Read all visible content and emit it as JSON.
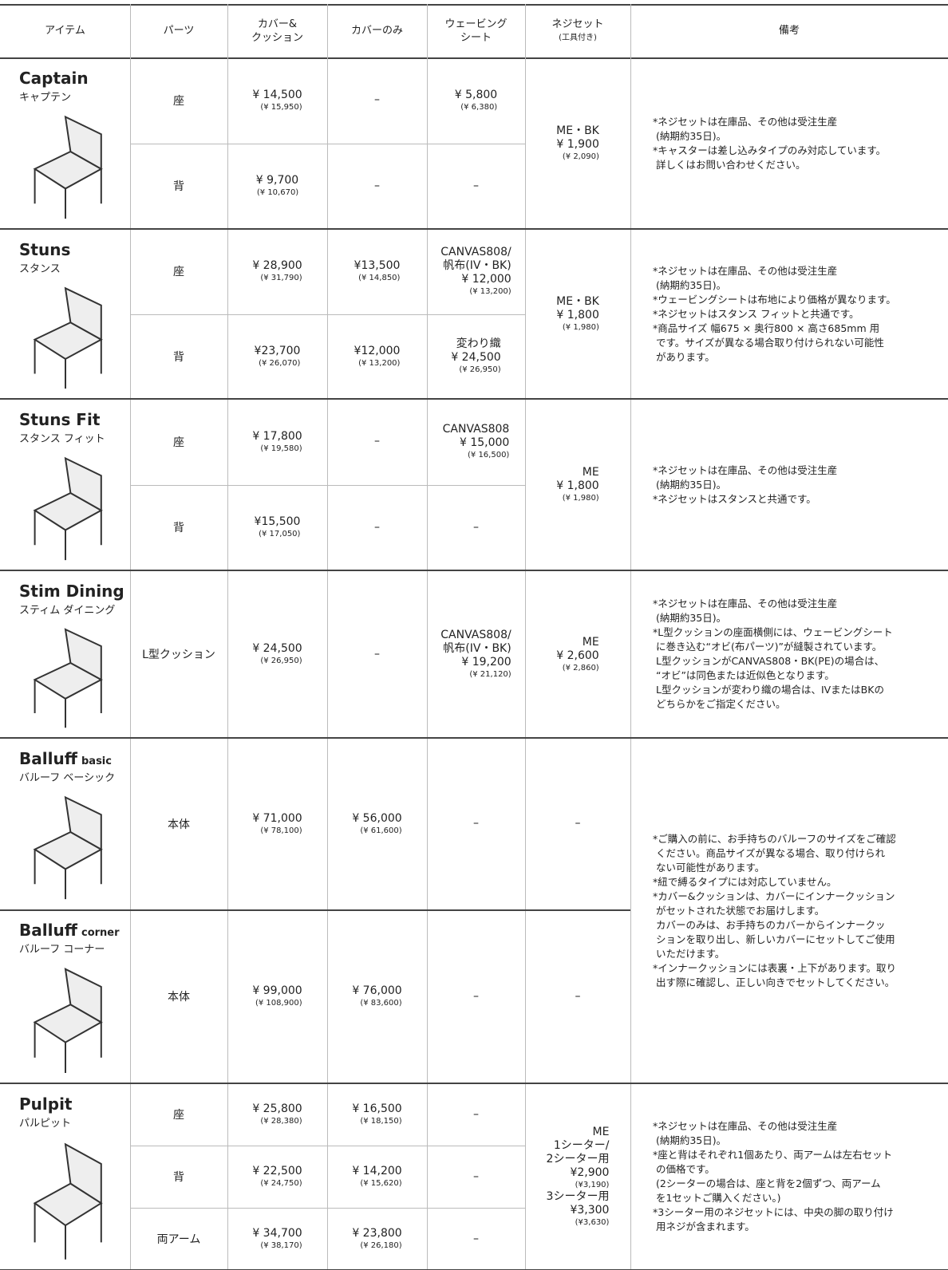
{
  "header": [
    [
      "アイテム"
    ],
    [
      "パーツ"
    ],
    [
      "カバー&",
      "クッション"
    ],
    [
      "カバーのみ"
    ],
    [
      "ウェービング",
      "シート"
    ],
    [
      "ネジセット",
      {
        "small": "(工具付き)"
      }
    ],
    [
      "備考"
    ]
  ],
  "groups": [
    {
      "items": [
        {
          "name": "Captain",
          "kana": "キャプテン",
          "parts": [
            {
              "part": "座",
              "cover_cushion": [
                "¥ 14,500",
                {
                  "small": "(¥ 15,950)"
                }
              ],
              "cover_only": [
                "–"
              ],
              "webbing": [
                "¥ 5,800",
                {
                  "small": "(¥ 6,380)"
                }
              ]
            },
            {
              "part": "背",
              "cover_cushion": [
                "¥ 9,700",
                {
                  "small": "(¥ 10,670)"
                }
              ],
              "cover_only": [
                "–"
              ],
              "webbing": [
                "–"
              ]
            }
          ],
          "screw": [
            "ME・BK",
            "¥ 1,900",
            {
              "small": "(¥ 2,090)"
            }
          ]
        }
      ],
      "notes": [
        "*ネジセットは在庫品、その他は受注生産",
        " (納期約35日)。",
        "*キャスターは差し込みタイプのみ対応しています。",
        " 詳しくはお問い合わせください。"
      ]
    },
    {
      "items": [
        {
          "name": "Stuns",
          "kana": "スタンス",
          "parts": [
            {
              "part": "座",
              "cover_cushion": [
                "¥ 28,900",
                {
                  "small": "(¥ 31,790)"
                }
              ],
              "cover_only": [
                "¥13,500",
                {
                  "small": "(¥ 14,850)"
                }
              ],
              "webbing": [
                "CANVAS808/",
                "帆布(IV・BK)",
                "¥ 12,000",
                {
                  "small": "(¥ 13,200)"
                }
              ]
            },
            {
              "part": "背",
              "cover_cushion": [
                "¥23,700",
                {
                  "small": "(¥ 26,070)"
                }
              ],
              "cover_only": [
                "¥12,000",
                {
                  "small": "(¥ 13,200)"
                }
              ],
              "webbing": [
                "変わり織",
                "¥ 24,500",
                {
                  "small": "(¥ 26,950)"
                }
              ]
            }
          ],
          "screw": [
            "ME・BK",
            "¥ 1,800",
            {
              "small": "(¥ 1,980)"
            }
          ]
        }
      ],
      "notes": [
        "*ネジセットは在庫品、その他は受注生産",
        " (納期約35日)。",
        "*ウェービングシートは布地により価格が異なります。",
        "*ネジセットはスタンス フィットと共通です。",
        "*商品サイズ 幅675 × 奥行800 × 高さ685mm 用",
        " です。サイズが異なる場合取り付けられない可能性",
        " があります。"
      ]
    },
    {
      "items": [
        {
          "name": "Stuns Fit",
          "kana": "スタンス フィット",
          "parts": [
            {
              "part": "座",
              "cover_cushion": [
                "¥ 17,800",
                {
                  "small": "(¥ 19,580)"
                }
              ],
              "cover_only": [
                "–"
              ],
              "webbing": [
                "CANVAS808",
                "¥ 15,000",
                {
                  "small": "(¥ 16,500)"
                }
              ]
            },
            {
              "part": "背",
              "cover_cushion": [
                "¥15,500",
                {
                  "small": "(¥ 17,050)"
                }
              ],
              "cover_only": [
                "–"
              ],
              "webbing": [
                "–"
              ]
            }
          ],
          "screw": [
            "ME",
            "¥ 1,800",
            {
              "small": "(¥ 1,980)"
            }
          ]
        }
      ],
      "notes": [
        "*ネジセットは在庫品、その他は受注生産",
        " (納期約35日)。",
        "*ネジセットはスタンスと共通です。"
      ]
    },
    {
      "items": [
        {
          "name": "Stim Dining",
          "kana": "スティム ダイニング",
          "parts": [
            {
              "part": "L型クッション",
              "cover_cushion": [
                "¥ 24,500",
                {
                  "small": "(¥ 26,950)"
                }
              ],
              "cover_only": [
                "–"
              ],
              "webbing": [
                "CANVAS808/",
                "帆布(IV・BK)",
                "¥ 19,200",
                {
                  "small": "(¥ 21,120)"
                }
              ]
            }
          ],
          "screw": [
            "ME",
            "¥ 2,600",
            {
              "small": "(¥ 2,860)"
            }
          ]
        }
      ],
      "notes": [
        "*ネジセットは在庫品、その他は受注生産",
        " (納期約35日)。",
        "*L型クッションの座面横側には、ウェービングシート",
        " に巻き込む“オビ(布パーツ)”が縫製されています。",
        " L型クッションがCANVAS808・BK(PE)の場合は、",
        " “オビ”は同色または近似色となります。",
        " L型クッションが変わり織の場合は、IVまたはBKの",
        " どちらかをご指定ください。"
      ]
    },
    {
      "items": [
        {
          "name": "Balluff",
          "name_small": "basic",
          "kana": "バルーフ ベーシック",
          "parts": [
            {
              "part": "本体",
              "cover_cushion": [
                "¥ 71,000",
                {
                  "small": "(¥ 78,100)"
                }
              ],
              "cover_only": [
                "¥ 56,000",
                {
                  "small": "(¥ 61,600)"
                }
              ],
              "webbing": [
                "–"
              ]
            }
          ],
          "screw": [
            "–"
          ]
        },
        {
          "name": "Balluff",
          "name_small": "corner",
          "kana": "バルーフ コーナー",
          "parts": [
            {
              "part": "本体",
              "cover_cushion": [
                "¥ 99,000",
                {
                  "small": "(¥ 108,900)"
                }
              ],
              "cover_only": [
                "¥ 76,000",
                {
                  "small": "(¥ 83,600)"
                }
              ],
              "webbing": [
                "–"
              ]
            }
          ],
          "screw": [
            "–"
          ]
        }
      ],
      "notes": [
        "*ご購入の前に、お手持ちのバルーフのサイズをご確認",
        " ください。商品サイズが異なる場合、取り付けられ",
        " ない可能性があります。",
        "*紐で縛るタイプには対応していません。",
        "*カバー&クッションは、カバーにインナークッション",
        " がセットされた状態でお届けします。",
        " カバーのみは、お手持ちのカバーからインナークッ",
        " ションを取り出し、新しいカバーにセットしてご使用",
        " いただけます。",
        "*インナークッションには表裏・上下があります。取り",
        " 出す際に確認し、正しい向きでセットしてください。"
      ]
    },
    {
      "items": [
        {
          "name": "Pulpit",
          "kana": "パルピット",
          "parts": [
            {
              "part": "座",
              "cover_cushion": [
                "¥ 25,800",
                {
                  "small": "(¥ 28,380)"
                }
              ],
              "cover_only": [
                "¥ 16,500",
                {
                  "small": "(¥ 18,150)"
                }
              ],
              "webbing": [
                "–"
              ]
            },
            {
              "part": "背",
              "cover_cushion": [
                "¥ 22,500",
                {
                  "small": "(¥ 24,750)"
                }
              ],
              "cover_only": [
                "¥ 14,200",
                {
                  "small": "(¥ 15,620)"
                }
              ],
              "webbing": [
                "–"
              ]
            },
            {
              "part": "両アーム",
              "cover_cushion": [
                "¥ 34,700",
                {
                  "small": "(¥ 38,170)"
                }
              ],
              "cover_only": [
                "¥ 23,800",
                {
                  "small": "(¥ 26,180)"
                }
              ],
              "webbing": [
                "–"
              ]
            }
          ],
          "screw": [
            "ME",
            "1シーター/",
            "2シーター用",
            "¥2,900",
            {
              "small": "(¥3,190)"
            },
            "3シーター用",
            "¥3,300",
            {
              "small": "(¥3,630)"
            }
          ]
        }
      ],
      "notes": [
        "*ネジセットは在庫品、その他は受注生産",
        " (納期約35日)。",
        "*座と背はそれぞれ1個あたり、両アームは左右セット",
        " の価格です。",
        " (2シーターの場合は、座と背を2個ずつ、両アーム",
        " を1セットご購入ください。)",
        "*3シーター用のネジセットには、中央の脚の取り付け",
        " 用ネジが含まれます。"
      ]
    }
  ]
}
